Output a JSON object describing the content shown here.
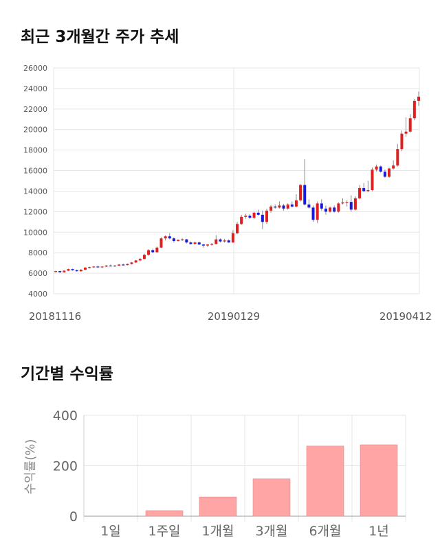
{
  "sections": {
    "price_title": "최근 3개월간 주가 추세",
    "return_title": "기간별 수익률"
  },
  "colors": {
    "up": "#e02020",
    "down": "#1a1adc",
    "bar": "#ffa5a5",
    "grid": "#e5e5e5"
  },
  "chart_data": [
    {
      "type": "candlestick",
      "y_ticks": [
        4000,
        6000,
        8000,
        10000,
        12000,
        14000,
        16000,
        18000,
        20000,
        22000,
        24000,
        26000
      ],
      "ylim": [
        4000,
        26000
      ],
      "x_tick_labels": [
        "20181116",
        "20190129",
        "20190412"
      ],
      "grid": true,
      "candles": [
        [
          6150,
          6250,
          6100,
          6200
        ],
        [
          6200,
          6250,
          6050,
          6100
        ],
        [
          6100,
          6300,
          6050,
          6250
        ],
        [
          6250,
          6450,
          6200,
          6400
        ],
        [
          6400,
          6450,
          6250,
          6300
        ],
        [
          6300,
          6350,
          6150,
          6200
        ],
        [
          6200,
          6400,
          6150,
          6350
        ],
        [
          6350,
          6600,
          6300,
          6550
        ],
        [
          6550,
          6650,
          6450,
          6600
        ],
        [
          6600,
          6700,
          6550,
          6650
        ],
        [
          6650,
          6750,
          6550,
          6600
        ],
        [
          6600,
          6700,
          6500,
          6650
        ],
        [
          6650,
          6800,
          6600,
          6750
        ],
        [
          6750,
          6850,
          6650,
          6700
        ],
        [
          6700,
          6800,
          6600,
          6750
        ],
        [
          6750,
          6900,
          6700,
          6850
        ],
        [
          6850,
          6950,
          6750,
          6800
        ],
        [
          6800,
          6950,
          6750,
          6900
        ],
        [
          6900,
          7100,
          6850,
          7050
        ],
        [
          7050,
          7300,
          7000,
          7250
        ],
        [
          7250,
          7500,
          7150,
          7400
        ],
        [
          7400,
          7900,
          7350,
          7800
        ],
        [
          7800,
          8350,
          7700,
          8250
        ],
        [
          8250,
          8400,
          7950,
          8050
        ],
        [
          8050,
          8600,
          8000,
          8500
        ],
        [
          8500,
          9500,
          8450,
          9400
        ],
        [
          9400,
          9700,
          9200,
          9600
        ],
        [
          9600,
          9900,
          9300,
          9400
        ],
        [
          9400,
          9500,
          9000,
          9150
        ],
        [
          9150,
          9300,
          9100,
          9250
        ],
        [
          9250,
          9400,
          9150,
          9300
        ],
        [
          9300,
          9350,
          8900,
          9000
        ],
        [
          9000,
          9100,
          8800,
          8850
        ],
        [
          8850,
          9100,
          8800,
          9000
        ],
        [
          9000,
          9100,
          8750,
          8800
        ],
        [
          8800,
          8850,
          8500,
          8700
        ],
        [
          8700,
          8850,
          8550,
          8800
        ],
        [
          8800,
          8950,
          8700,
          8850
        ],
        [
          8850,
          9700,
          8800,
          9300
        ],
        [
          9300,
          9400,
          9000,
          9100
        ],
        [
          9100,
          9350,
          9000,
          9200
        ],
        [
          9200,
          9300,
          8950,
          9000
        ],
        [
          9000,
          10200,
          8950,
          9900
        ],
        [
          9900,
          11000,
          9800,
          10800
        ],
        [
          10800,
          11700,
          10700,
          11500
        ],
        [
          11500,
          11800,
          11300,
          11600
        ],
        [
          11600,
          11750,
          11300,
          11400
        ],
        [
          11400,
          12000,
          11300,
          11900
        ],
        [
          11900,
          12200,
          11600,
          11700
        ],
        [
          11700,
          12100,
          10300,
          11000
        ],
        [
          11000,
          12300,
          10800,
          12100
        ],
        [
          12100,
          12650,
          11900,
          12500
        ],
        [
          12500,
          12700,
          12300,
          12400
        ],
        [
          12400,
          13000,
          12300,
          12600
        ],
        [
          12600,
          12750,
          12100,
          12300
        ],
        [
          12300,
          12800,
          12200,
          12700
        ],
        [
          12700,
          13000,
          12400,
          12500
        ],
        [
          12500,
          13700,
          12400,
          13100
        ],
        [
          13100,
          14700,
          13000,
          14600
        ],
        [
          14600,
          17100,
          12600,
          12700
        ],
        [
          12700,
          13200,
          12300,
          12400
        ],
        [
          12400,
          12600,
          11000,
          11200
        ],
        [
          11200,
          13000,
          10900,
          12800
        ],
        [
          12800,
          13200,
          12100,
          12300
        ],
        [
          12300,
          12600,
          11700,
          12000
        ],
        [
          12000,
          12500,
          11900,
          12400
        ],
        [
          12400,
          12600,
          11900,
          12000
        ],
        [
          12000,
          12900,
          11900,
          12800
        ],
        [
          12800,
          13300,
          12700,
          12900
        ],
        [
          12900,
          13100,
          12500,
          12950
        ],
        [
          12950,
          13600,
          12000,
          12200
        ],
        [
          12200,
          13500,
          12100,
          13300
        ],
        [
          13300,
          14600,
          13200,
          14300
        ],
        [
          14300,
          14800,
          13900,
          14000
        ],
        [
          14000,
          15000,
          13900,
          14100
        ],
        [
          14100,
          16300,
          14000,
          16100
        ],
        [
          16100,
          16600,
          15900,
          16400
        ],
        [
          16400,
          16500,
          15800,
          15900
        ],
        [
          15900,
          16100,
          15300,
          15400
        ],
        [
          15400,
          16300,
          15300,
          16200
        ],
        [
          16200,
          17000,
          16100,
          16500
        ],
        [
          16500,
          18600,
          16400,
          18100
        ],
        [
          18100,
          19900,
          17900,
          19600
        ],
        [
          19600,
          21200,
          19300,
          19800
        ],
        [
          19800,
          21500,
          19700,
          21100
        ],
        [
          21100,
          23000,
          20900,
          22800
        ],
        [
          22800,
          23700,
          22300,
          23200
        ]
      ]
    },
    {
      "type": "bar",
      "categories": [
        "1일",
        "1주일",
        "1개월",
        "3개월",
        "6개월",
        "1년"
      ],
      "values": [
        0,
        22,
        76,
        148,
        278,
        283
      ],
      "y_ticks": [
        0,
        200,
        400
      ],
      "ylim": [
        0,
        400
      ],
      "ylabel": "수익률(%)",
      "grid": true
    }
  ]
}
